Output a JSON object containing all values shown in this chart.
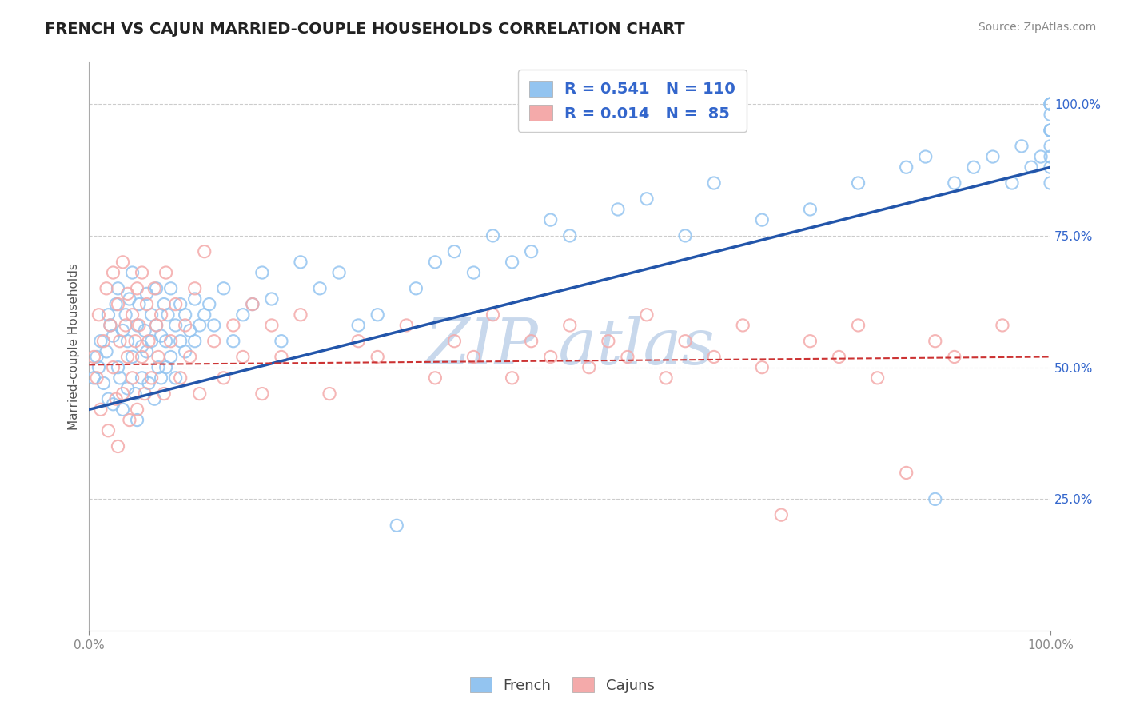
{
  "title": "FRENCH VS CAJUN MARRIED-COUPLE HOUSEHOLDS CORRELATION CHART",
  "source_text": "Source: ZipAtlas.com",
  "ylabel": "Married-couple Households",
  "xlim": [
    0.0,
    1.0
  ],
  "ylim": [
    0.0,
    1.08
  ],
  "yticks": [
    0.25,
    0.5,
    0.75,
    1.0
  ],
  "ytick_labels": [
    "25.0%",
    "50.0%",
    "75.0%",
    "100.0%"
  ],
  "french_R": 0.541,
  "french_N": 110,
  "cajun_R": 0.014,
  "cajun_N": 85,
  "french_color": "#93C4F0",
  "cajun_color": "#F4AAAA",
  "french_line_color": "#2255AA",
  "cajun_line_color": "#CC3333",
  "watermark_color": "#C8D8EC",
  "background_color": "#FFFFFF",
  "grid_color": "#CCCCCC",
  "legend_text_color": "#3366CC",
  "title_color": "#222222",
  "source_color": "#888888",
  "french_line_y_start": 0.42,
  "french_line_y_end": 0.88,
  "cajun_line_y_start": 0.505,
  "cajun_line_y_end": 0.52,
  "french_scatter_x": [
    0.005,
    0.008,
    0.01,
    0.012,
    0.015,
    0.018,
    0.02,
    0.02,
    0.022,
    0.025,
    0.025,
    0.028,
    0.03,
    0.03,
    0.032,
    0.035,
    0.035,
    0.038,
    0.04,
    0.04,
    0.042,
    0.045,
    0.045,
    0.048,
    0.05,
    0.05,
    0.052,
    0.055,
    0.055,
    0.058,
    0.06,
    0.06,
    0.062,
    0.065,
    0.065,
    0.068,
    0.07,
    0.07,
    0.072,
    0.075,
    0.075,
    0.078,
    0.08,
    0.08,
    0.082,
    0.085,
    0.085,
    0.09,
    0.09,
    0.095,
    0.095,
    0.1,
    0.1,
    0.105,
    0.11,
    0.11,
    0.115,
    0.12,
    0.125,
    0.13,
    0.14,
    0.15,
    0.16,
    0.17,
    0.18,
    0.19,
    0.2,
    0.22,
    0.24,
    0.26,
    0.28,
    0.3,
    0.32,
    0.34,
    0.36,
    0.38,
    0.4,
    0.42,
    0.44,
    0.46,
    0.48,
    0.5,
    0.55,
    0.58,
    0.62,
    0.65,
    0.7,
    0.75,
    0.8,
    0.85,
    0.87,
    0.88,
    0.9,
    0.92,
    0.94,
    0.96,
    0.97,
    0.98,
    0.99,
    1.0,
    1.0,
    1.0,
    1.0,
    1.0,
    1.0,
    1.0,
    1.0,
    1.0,
    1.0,
    1.0
  ],
  "french_scatter_y": [
    0.48,
    0.52,
    0.5,
    0.55,
    0.47,
    0.53,
    0.6,
    0.44,
    0.58,
    0.56,
    0.43,
    0.62,
    0.5,
    0.65,
    0.48,
    0.57,
    0.42,
    0.6,
    0.55,
    0.46,
    0.63,
    0.52,
    0.68,
    0.45,
    0.58,
    0.4,
    0.62,
    0.54,
    0.48,
    0.57,
    0.53,
    0.64,
    0.47,
    0.55,
    0.6,
    0.44,
    0.58,
    0.65,
    0.5,
    0.56,
    0.48,
    0.62,
    0.55,
    0.5,
    0.6,
    0.52,
    0.65,
    0.58,
    0.48,
    0.55,
    0.62,
    0.53,
    0.6,
    0.57,
    0.55,
    0.63,
    0.58,
    0.6,
    0.62,
    0.58,
    0.65,
    0.55,
    0.6,
    0.62,
    0.68,
    0.63,
    0.55,
    0.7,
    0.65,
    0.68,
    0.58,
    0.6,
    0.2,
    0.65,
    0.7,
    0.72,
    0.68,
    0.75,
    0.7,
    0.72,
    0.78,
    0.75,
    0.8,
    0.82,
    0.75,
    0.85,
    0.78,
    0.8,
    0.85,
    0.88,
    0.9,
    0.25,
    0.85,
    0.88,
    0.9,
    0.85,
    0.92,
    0.88,
    0.9,
    0.95,
    0.88,
    0.92,
    0.85,
    0.95,
    0.98,
    1.0,
    1.0,
    0.95,
    1.0,
    0.9
  ],
  "cajun_scatter_x": [
    0.005,
    0.008,
    0.01,
    0.012,
    0.015,
    0.018,
    0.02,
    0.022,
    0.025,
    0.025,
    0.028,
    0.03,
    0.03,
    0.032,
    0.035,
    0.035,
    0.038,
    0.04,
    0.04,
    0.042,
    0.045,
    0.045,
    0.048,
    0.05,
    0.05,
    0.052,
    0.055,
    0.055,
    0.058,
    0.06,
    0.062,
    0.065,
    0.068,
    0.07,
    0.072,
    0.075,
    0.078,
    0.08,
    0.085,
    0.09,
    0.095,
    0.1,
    0.105,
    0.11,
    0.115,
    0.12,
    0.13,
    0.14,
    0.15,
    0.16,
    0.17,
    0.18,
    0.19,
    0.2,
    0.22,
    0.25,
    0.28,
    0.3,
    0.33,
    0.36,
    0.38,
    0.4,
    0.42,
    0.44,
    0.46,
    0.48,
    0.5,
    0.52,
    0.54,
    0.56,
    0.58,
    0.6,
    0.62,
    0.65,
    0.68,
    0.7,
    0.72,
    0.75,
    0.78,
    0.8,
    0.82,
    0.85,
    0.88,
    0.9,
    0.95
  ],
  "cajun_scatter_y": [
    0.52,
    0.48,
    0.6,
    0.42,
    0.55,
    0.65,
    0.38,
    0.58,
    0.5,
    0.68,
    0.44,
    0.62,
    0.35,
    0.55,
    0.7,
    0.45,
    0.58,
    0.52,
    0.64,
    0.4,
    0.6,
    0.48,
    0.55,
    0.65,
    0.42,
    0.58,
    0.52,
    0.68,
    0.45,
    0.62,
    0.55,
    0.48,
    0.65,
    0.58,
    0.52,
    0.6,
    0.45,
    0.68,
    0.55,
    0.62,
    0.48,
    0.58,
    0.52,
    0.65,
    0.45,
    0.72,
    0.55,
    0.48,
    0.58,
    0.52,
    0.62,
    0.45,
    0.58,
    0.52,
    0.6,
    0.45,
    0.55,
    0.52,
    0.58,
    0.48,
    0.55,
    0.52,
    0.6,
    0.48,
    0.55,
    0.52,
    0.58,
    0.5,
    0.55,
    0.52,
    0.6,
    0.48,
    0.55,
    0.52,
    0.58,
    0.5,
    0.22,
    0.55,
    0.52,
    0.58,
    0.48,
    0.3,
    0.55,
    0.52,
    0.58
  ]
}
